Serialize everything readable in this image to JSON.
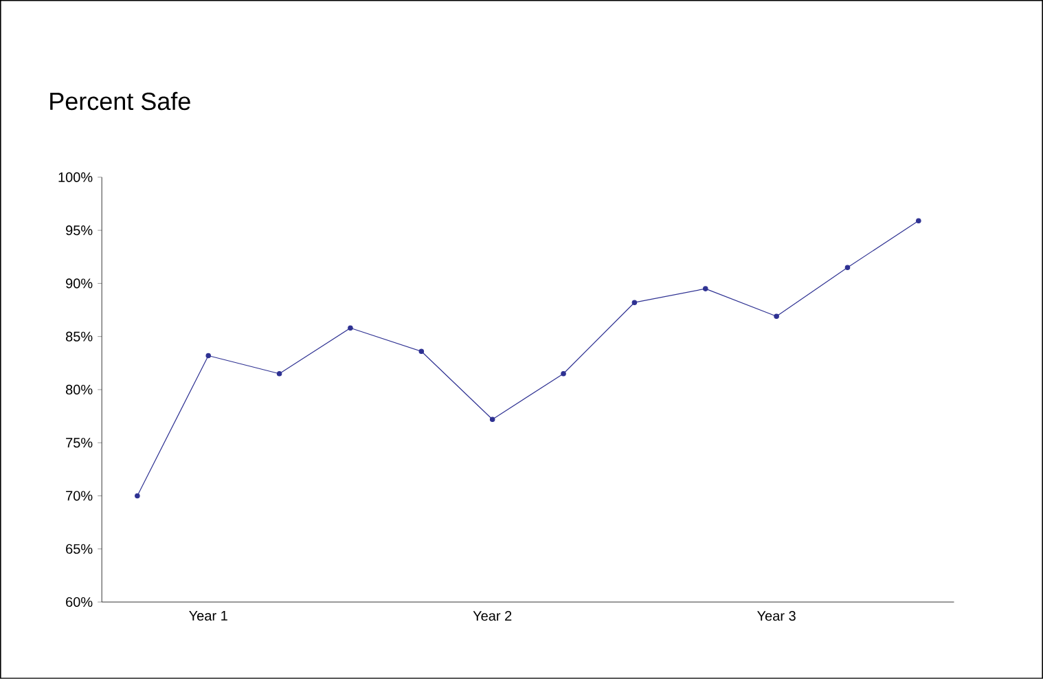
{
  "chart_data": {
    "type": "line",
    "title": "Percent Safe",
    "categories": [
      null,
      "Year 1",
      null,
      null,
      null,
      "Year 2",
      null,
      null,
      null,
      "Year 3",
      null,
      null
    ],
    "series": [
      {
        "color": "#2e3192",
        "values": [
          70,
          83.2,
          81.5,
          85.8,
          83.6,
          77.2,
          81.5,
          88.2,
          89.5,
          86.9,
          91.5,
          95.9
        ]
      }
    ],
    "ylim": [
      60,
      100
    ],
    "yticks": [
      {
        "value": 60,
        "label": "60%"
      },
      {
        "value": 65,
        "label": "65%"
      },
      {
        "value": 70,
        "label": "70%"
      },
      {
        "value": 75,
        "label": "75%"
      },
      {
        "value": 80,
        "label": "80%"
      },
      {
        "value": 85,
        "label": "85%"
      },
      {
        "value": 90,
        "label": "90%"
      },
      {
        "value": 95,
        "label": "95%"
      },
      {
        "value": 100,
        "label": "100%"
      }
    ],
    "grid": false,
    "marker": "circle",
    "line_style": "solid"
  }
}
